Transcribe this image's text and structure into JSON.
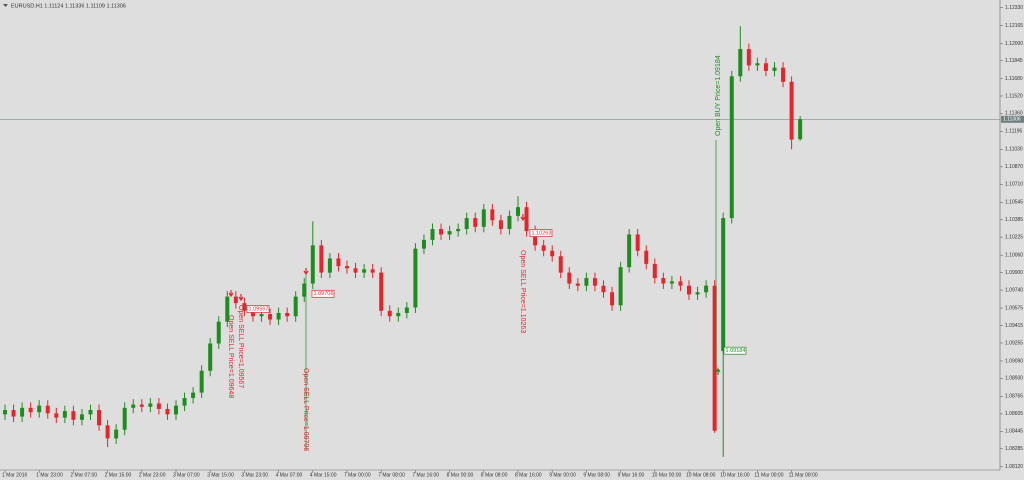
{
  "chart_data": {
    "type": "candlestick",
    "header": "EURUSD,H1  1.11124 1.11336 1.11109 1.11306",
    "up_color": "#1e8c1e",
    "down_color": "#e3262e",
    "ylim": [
      1.0809,
      1.124
    ],
    "yticks": [
      {
        "value": 1.1233,
        "label": "1.12330"
      },
      {
        "value": 1.12165,
        "label": "1.12165"
      },
      {
        "value": 1.12,
        "label": "1.12000"
      },
      {
        "value": 1.11845,
        "label": "1.11845"
      },
      {
        "value": 1.1168,
        "label": "1.11680"
      },
      {
        "value": 1.1152,
        "label": "1.11520"
      },
      {
        "value": 1.1136,
        "label": "1.11360"
      },
      {
        "value": 1.11195,
        "label": "1.11195"
      },
      {
        "value": 1.1103,
        "label": "1.11030"
      },
      {
        "value": 1.1087,
        "label": "1.10870"
      },
      {
        "value": 1.1071,
        "label": "1.10710"
      },
      {
        "value": 1.10545,
        "label": "1.10545"
      },
      {
        "value": 1.10385,
        "label": "1.10385"
      },
      {
        "value": 1.10225,
        "label": "1.10225"
      },
      {
        "value": 1.1006,
        "label": "1.10060"
      },
      {
        "value": 1.099,
        "label": "1.09900"
      },
      {
        "value": 1.0974,
        "label": "1.09740"
      },
      {
        "value": 1.09575,
        "label": "1.09575"
      },
      {
        "value": 1.09415,
        "label": "1.09415"
      },
      {
        "value": 1.09255,
        "label": "1.09255"
      },
      {
        "value": 1.0909,
        "label": "1.09090"
      },
      {
        "value": 1.0893,
        "label": "1.08930"
      },
      {
        "value": 1.08765,
        "label": "1.08765"
      },
      {
        "value": 1.08605,
        "label": "1.08605"
      },
      {
        "value": 1.08445,
        "label": "1.08445"
      },
      {
        "value": 1.08285,
        "label": "1.08285"
      },
      {
        "value": 1.0812,
        "label": "1.08120"
      }
    ],
    "current_price": 1.11306,
    "categories": [
      "1 Mar 2016",
      null,
      null,
      null,
      "1 Mar 23:00",
      null,
      null,
      null,
      "2 Mar 07:00",
      null,
      null,
      null,
      "2 Mar 15:00",
      null,
      null,
      null,
      "2 Mar 23:00",
      null,
      null,
      null,
      "3 Mar 07:00",
      null,
      null,
      null,
      "3 Mar 15:00",
      null,
      null,
      null,
      "3 Mar 23:00",
      null,
      null,
      null,
      "4 Mar 07:00",
      null,
      null,
      null,
      "4 Mar 15:00",
      null,
      null,
      null,
      "7 Mar 00:00",
      null,
      null,
      null,
      "7 Mar 08:00",
      null,
      null,
      null,
      "7 Mar 16:00",
      null,
      null,
      null,
      "8 Mar 00:00",
      null,
      null,
      null,
      "8 Mar 08:00",
      null,
      null,
      null,
      "8 Mar 16:00",
      null,
      null,
      null,
      "9 Mar 00:00",
      null,
      null,
      null,
      "9 Mar 08:00",
      null,
      null,
      null,
      "9 Mar 16:00",
      null,
      null,
      null,
      "10 Mar 00:00",
      null,
      null,
      null,
      "10 Mar 08:00",
      null,
      null,
      null,
      "10 Mar 16:00",
      null,
      null,
      null,
      "11 Mar 00:00",
      null,
      null,
      null,
      "11 Mar 08:00",
      null
    ],
    "open": [
      1.086,
      1.0864,
      1.0858,
      1.0866,
      1.0862,
      1.0868,
      1.0861,
      1.0857,
      1.0863,
      1.0855,
      1.086,
      1.0864,
      1.085,
      1.0838,
      1.0846,
      1.0866,
      1.0869,
      1.0867,
      1.087,
      1.0865,
      1.086,
      1.0868,
      1.0875,
      1.088,
      1.09,
      1.0925,
      1.0945,
      1.0968,
      1.0962,
      1.0955,
      1.095,
      1.0952,
      1.0947,
      1.0953,
      1.095,
      1.0968,
      1.098,
      1.1015,
      1.099,
      1.1003,
      1.0996,
      1.0994,
      1.099,
      1.0993,
      1.099,
      1.0955,
      1.095,
      1.0953,
      1.0958,
      1.1012,
      1.102,
      1.103,
      1.1025,
      1.1028,
      1.103,
      1.104,
      1.1032,
      1.1048,
      1.1038,
      1.103,
      1.1042,
      1.105,
      1.1028,
      1.1015,
      1.101,
      1.1005,
      1.099,
      1.098,
      1.0978,
      1.0985,
      1.0978,
      1.0972,
      1.096,
      1.0995,
      1.1025,
      1.101,
      1.0998,
      1.0985,
      1.098,
      1.0982,
      1.0978,
      1.097,
      1.0972,
      1.0978,
      1.0918,
      1.104,
      1.117,
      1.1195,
      1.118,
      1.1182,
      1.1175,
      1.1178,
      1.1165,
      1.11124
    ],
    "high": [
      1.0869,
      1.0869,
      1.0871,
      1.0871,
      1.0873,
      1.0873,
      1.0866,
      1.0868,
      1.0868,
      1.0865,
      1.0869,
      1.0869,
      1.0855,
      1.0851,
      1.0871,
      1.0874,
      1.0874,
      1.0875,
      1.0875,
      1.087,
      1.0873,
      1.088,
      1.0885,
      1.0905,
      1.093,
      1.095,
      1.0973,
      1.0973,
      1.0967,
      1.096,
      1.0957,
      1.0957,
      1.0958,
      1.0958,
      1.0973,
      1.0985,
      1.1037,
      1.102,
      1.1008,
      1.1008,
      1.1001,
      1.0999,
      1.0998,
      1.0998,
      1.0995,
      1.096,
      1.0958,
      1.0963,
      1.1017,
      1.1025,
      1.1035,
      1.1035,
      1.1033,
      1.1035,
      1.1045,
      1.1045,
      1.1053,
      1.1053,
      1.1043,
      1.1047,
      1.106,
      1.1055,
      1.1033,
      1.102,
      1.1015,
      1.101,
      1.0995,
      1.0985,
      1.099,
      1.099,
      1.0983,
      1.0977,
      1.1,
      1.103,
      1.103,
      1.1015,
      1.1003,
      1.099,
      1.0987,
      1.0987,
      1.0983,
      1.0977,
      1.0983,
      1.0983,
      1.1045,
      1.1175,
      1.1216,
      1.12,
      1.1187,
      1.1187,
      1.1183,
      1.1183,
      1.117,
      1.11336
    ],
    "low": [
      1.0855,
      1.0853,
      1.0853,
      1.0857,
      1.0857,
      1.0856,
      1.0852,
      1.0852,
      1.085,
      1.085,
      1.0855,
      1.0845,
      1.083,
      1.0833,
      1.0841,
      1.0861,
      1.0862,
      1.0862,
      1.086,
      1.0855,
      1.0855,
      1.0863,
      1.087,
      1.0875,
      1.0895,
      1.092,
      1.094,
      1.0957,
      1.095,
      1.0945,
      1.0945,
      1.0942,
      1.0942,
      1.0945,
      1.0945,
      1.0963,
      1.0975,
      1.0985,
      1.0985,
      1.0991,
      1.0989,
      1.0985,
      1.0985,
      1.0985,
      1.095,
      1.0945,
      1.0945,
      1.0948,
      1.0953,
      1.1007,
      1.1015,
      1.102,
      1.102,
      1.1023,
      1.1025,
      1.1027,
      1.1027,
      1.1033,
      1.1025,
      1.1025,
      1.1037,
      1.1023,
      1.101,
      1.1005,
      1.1,
      1.0985,
      1.0975,
      1.0973,
      1.0973,
      1.0973,
      1.0967,
      1.0955,
      1.0955,
      1.099,
      1.1005,
      1.0993,
      1.098,
      1.0975,
      1.0975,
      1.0973,
      1.0965,
      1.0965,
      1.0967,
      1.0843,
      1.0821,
      1.1035,
      1.1165,
      1.1175,
      1.1175,
      1.117,
      1.117,
      1.116,
      1.1103,
      1.11109
    ],
    "close": [
      1.0864,
      1.0858,
      1.0866,
      1.0862,
      1.0868,
      1.0861,
      1.0857,
      1.0863,
      1.0855,
      1.086,
      1.0864,
      1.085,
      1.0838,
      1.0846,
      1.0866,
      1.0869,
      1.0867,
      1.087,
      1.0865,
      1.086,
      1.0868,
      1.0875,
      1.088,
      1.09,
      1.0925,
      1.0945,
      1.0968,
      1.0962,
      1.0955,
      1.095,
      1.0952,
      1.0947,
      1.0953,
      1.095,
      1.0968,
      1.098,
      1.1015,
      1.099,
      1.1003,
      1.0996,
      1.0994,
      1.099,
      1.0993,
      1.099,
      1.0955,
      1.095,
      1.0953,
      1.0958,
      1.1012,
      1.102,
      1.103,
      1.1025,
      1.1028,
      1.103,
      1.104,
      1.1032,
      1.1048,
      1.1038,
      1.103,
      1.1042,
      1.105,
      1.1028,
      1.1015,
      1.101,
      1.1005,
      1.099,
      1.098,
      1.0978,
      1.0985,
      1.0978,
      1.0972,
      1.096,
      1.0995,
      1.1025,
      1.101,
      1.0998,
      1.0985,
      1.098,
      1.0982,
      1.0978,
      1.097,
      1.0972,
      1.0978,
      1.0845,
      1.104,
      1.117,
      1.1195,
      1.118,
      1.1182,
      1.1175,
      1.1178,
      1.1165,
      1.1112,
      1.11306
    ],
    "annotations": [
      {
        "text": "Open SELL Price=1.09648",
        "color": "#e3262e"
      },
      {
        "text": "Open SELL Price=1.09567",
        "color": "#e3262e"
      },
      {
        "text": "Open SELL Price=1.09706",
        "color": "#e3262e"
      },
      {
        "text": "Open SELL Price=1.10263",
        "color": "#e3262e"
      },
      {
        "text": "Open BUY Price=1.09184",
        "color": "#1e8c1e"
      }
    ],
    "price_labels": [
      1.09567,
      1.09706,
      1.10263,
      1.09184
    ]
  }
}
